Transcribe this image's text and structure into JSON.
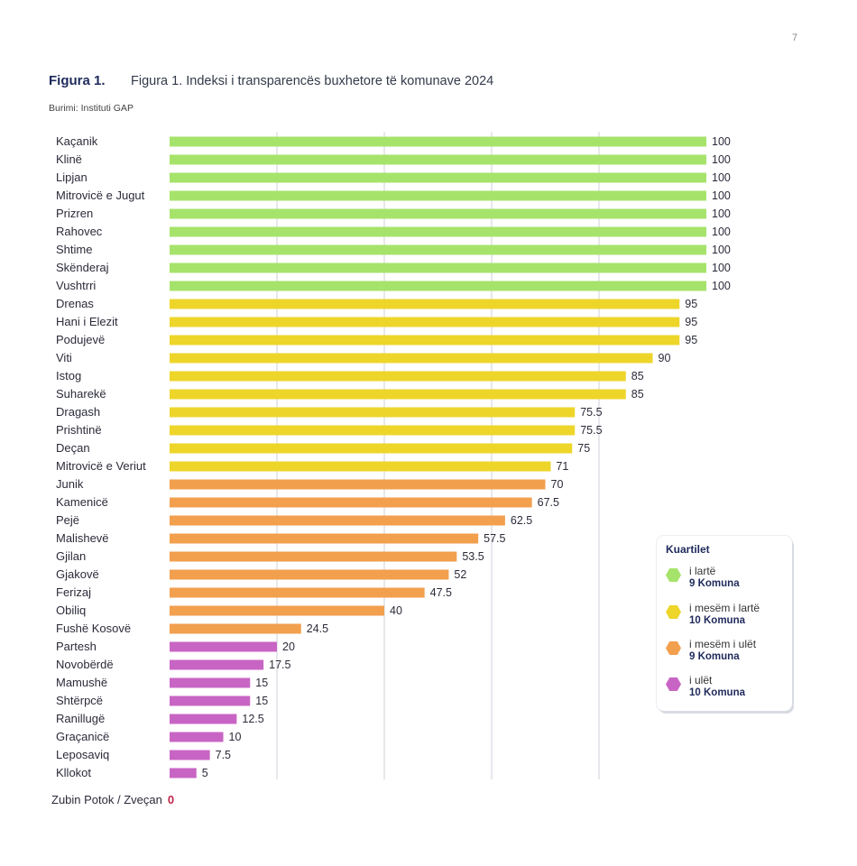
{
  "page": {
    "number": "7"
  },
  "figure": {
    "label": "Figura 1.",
    "title": "Figura 1. Indeksi i transparencës buxhetore të komunave 2024",
    "source": "Burimi: Instituti GAP"
  },
  "colors": {
    "high": "#a6e36b",
    "upper_middle": "#eed52a",
    "lower_middle": "#f29f4e",
    "low": "#c865c4",
    "gridline": "#cfd2d8",
    "zero_value": "#c0264b"
  },
  "chart_data": {
    "type": "bar",
    "orientation": "horizontal",
    "title": "Figura 1. Indeksi i transparencës buxhetore të komunave 2024",
    "xlim": [
      0,
      100
    ],
    "grid": true,
    "categories": [
      "Kaçanik",
      "Klinë",
      "Lipjan",
      "Mitrovicë e Jugut",
      "Prizren",
      "Rahovec",
      "Shtime",
      "Skënderaj",
      "Vushtrri",
      "Drenas",
      "Hani i Elezit",
      "Podujevë",
      "Viti",
      "Istog",
      "Suharekë",
      "Dragash",
      "Prishtinë",
      "Deçan",
      "Mitrovicë e Veriut",
      "Junik",
      "Kamenicë",
      "Pejë",
      "Malishevë",
      "Gjilan",
      "Gjakovë",
      "Ferizaj",
      "Obiliq",
      "Fushë Kosovë",
      "Partesh",
      "Novobërdë",
      "Mamushë",
      "Shtërpcë",
      "Ranillugë",
      "Graçanicë",
      "Leposaviq",
      "Kllokot"
    ],
    "values": [
      100,
      100,
      100,
      100,
      100,
      100,
      100,
      100,
      100,
      95,
      95,
      95,
      90,
      85,
      85,
      75.5,
      75.5,
      75,
      71,
      70,
      67.5,
      62.5,
      57.5,
      53.5,
      52,
      47.5,
      40,
      24.5,
      20,
      17.5,
      15,
      15,
      12.5,
      10,
      7.5,
      5
    ],
    "value_labels": [
      "100",
      "100",
      "100",
      "100",
      "100",
      "100",
      "100",
      "100",
      "100",
      "95",
      "95",
      "95",
      "90",
      "85",
      "85",
      "75.5",
      "75.5",
      "75",
      "71",
      "70",
      "67.5",
      "62.5",
      "57.5",
      "53.5",
      "52",
      "47.5",
      "40",
      "24.5",
      "20",
      "17.5",
      "15",
      "15",
      "12.5",
      "10",
      "7.5",
      "5"
    ],
    "quartiles": [
      "high",
      "high",
      "high",
      "high",
      "high",
      "high",
      "high",
      "high",
      "high",
      "upper_middle",
      "upper_middle",
      "upper_middle",
      "upper_middle",
      "upper_middle",
      "upper_middle",
      "upper_middle",
      "upper_middle",
      "upper_middle",
      "upper_middle",
      "lower_middle",
      "lower_middle",
      "lower_middle",
      "lower_middle",
      "lower_middle",
      "lower_middle",
      "lower_middle",
      "lower_middle",
      "lower_middle",
      "low",
      "low",
      "low",
      "low",
      "low",
      "low",
      "low",
      "low"
    ],
    "zero_entry": {
      "label": "Zubin Potok / Zveçan",
      "value": "0"
    }
  },
  "legend": {
    "title": "Kuartilet",
    "items": [
      {
        "key": "high",
        "label": "i lartë",
        "count": "9 Komuna"
      },
      {
        "key": "upper_middle",
        "label": "i mesëm i lartë",
        "count": "10 Komuna"
      },
      {
        "key": "lower_middle",
        "label": "i mesëm i ulët",
        "count": "9 Komuna"
      },
      {
        "key": "low",
        "label": "i ulët",
        "count": "10 Komuna"
      }
    ]
  }
}
